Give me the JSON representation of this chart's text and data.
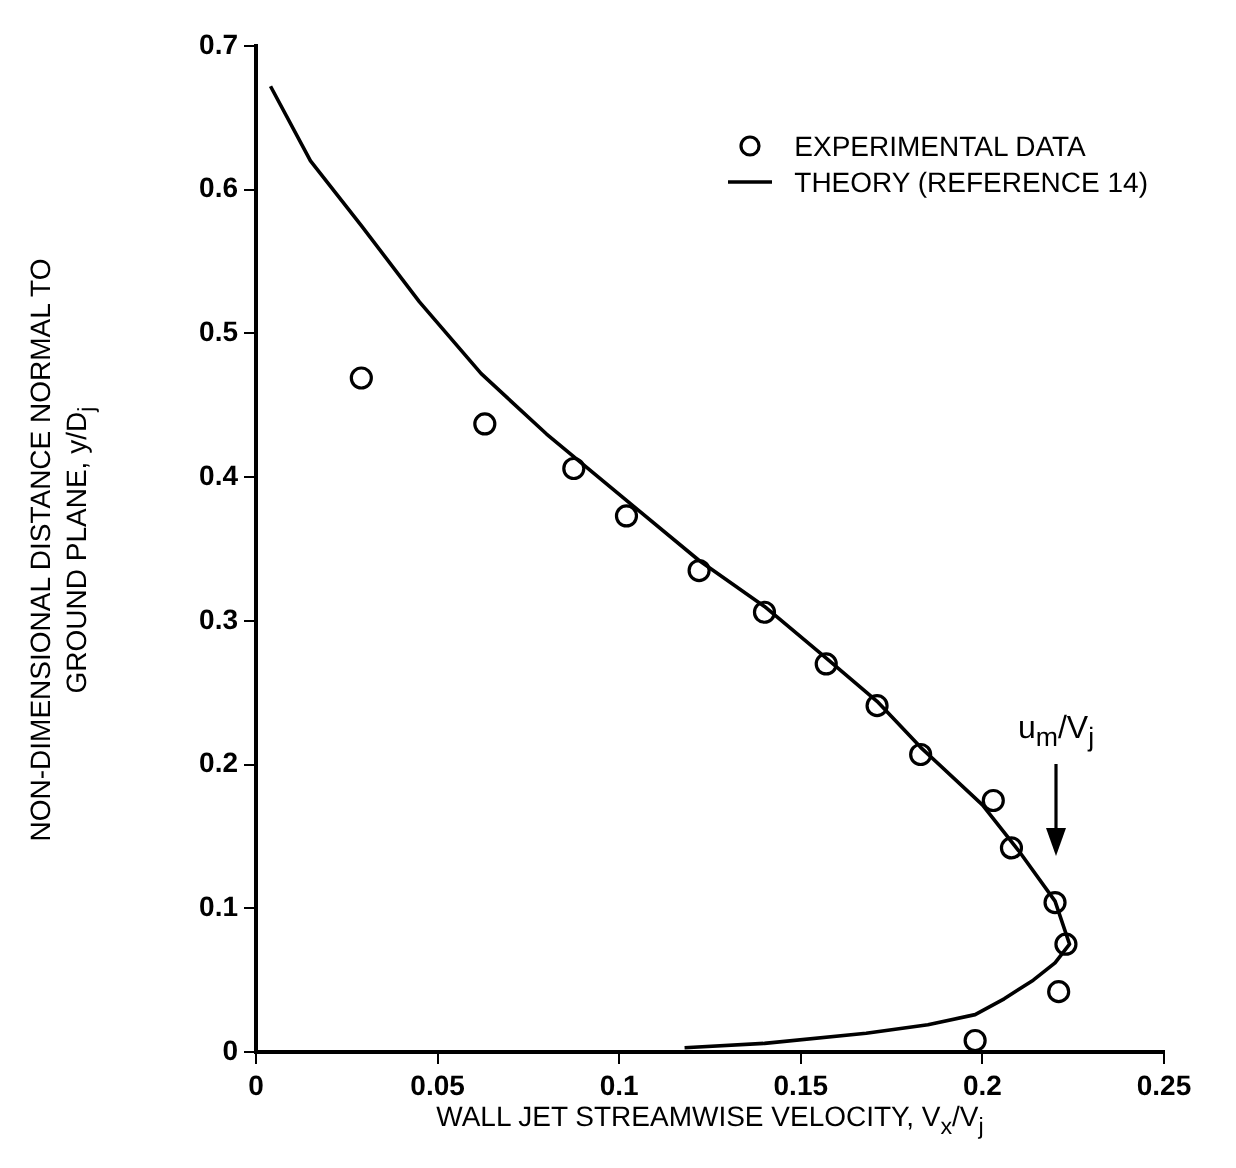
{
  "chart_data": {
    "type": "scatter",
    "xlabel": "WALL JET STREAMWISE VELOCITY, V$_{x}$/V$_{j}$",
    "ylabel": "NON-DIMENSIONAL DISTANCE NORMAL TO\nGROUND PLANE, y/D$_{j}$",
    "xlim": [
      0,
      0.25
    ],
    "xticks": [
      0,
      0.05,
      0.1,
      0.15,
      0.2,
      0.25
    ],
    "ylim": [
      0,
      0.7
    ],
    "yticks": [
      0,
      0.1,
      0.2,
      0.3,
      0.4,
      0.5,
      0.6,
      0.7
    ],
    "grid": false,
    "legend": "top right",
    "annotations": [
      "u$_{m}$/V$_{j}$"
    ],
    "series": [
      {
        "name": "EXPERIMENTAL DATA",
        "marker": "circle",
        "color": "#000000",
        "x": [
          0.029,
          0.063,
          0.0875,
          0.102,
          0.122,
          0.14,
          0.157,
          0.171,
          0.183,
          0.203,
          0.208,
          0.22,
          0.223,
          0.221,
          0.198
        ],
        "values": [
          0.469,
          0.437,
          0.406,
          0.373,
          0.335,
          0.306,
          0.27,
          0.241,
          0.207,
          0.175,
          0.142,
          0.104,
          0.075,
          0.042,
          0.008
        ]
      },
      {
        "name": "THEORY (REFERENCE 14)",
        "type": "line",
        "marker": "none",
        "line_style": "solid",
        "color": "#000000",
        "x": [
          0.004,
          0.015,
          0.029,
          0.045,
          0.062,
          0.08,
          0.1,
          0.122,
          0.14,
          0.157,
          0.171,
          0.183,
          0.2,
          0.21,
          0.22,
          0.224,
          0.22,
          0.214,
          0.206,
          0.198,
          0.185,
          0.168,
          0.14,
          0.118
        ],
        "values": [
          0.672,
          0.62,
          0.575,
          0.522,
          0.472,
          0.43,
          0.388,
          0.342,
          0.31,
          0.274,
          0.244,
          0.212,
          0.172,
          0.14,
          0.105,
          0.075,
          0.062,
          0.05,
          0.037,
          0.026,
          0.019,
          0.013,
          0.006,
          0.003
        ]
      }
    ]
  }
}
